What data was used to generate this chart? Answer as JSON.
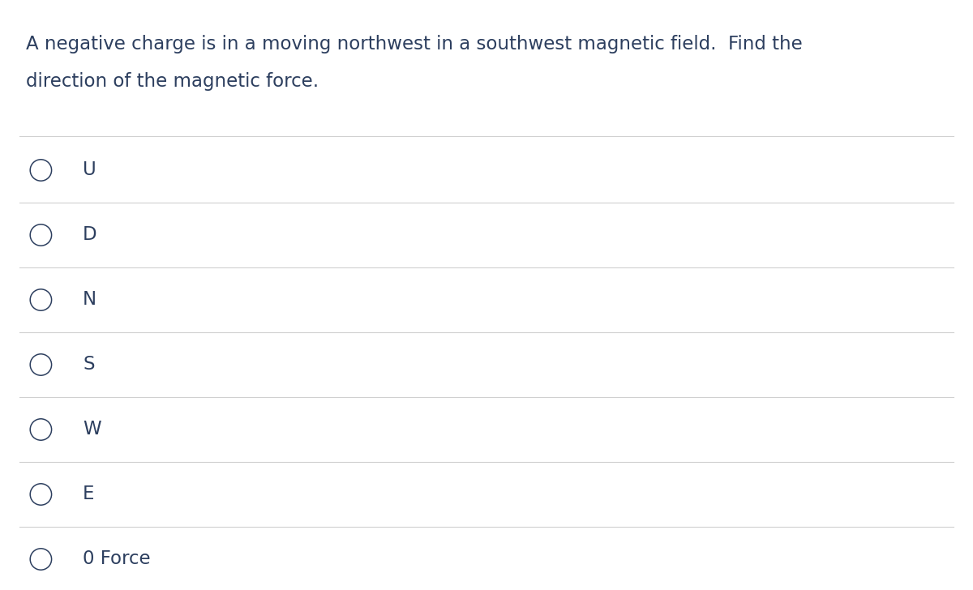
{
  "question_line1": "A negative charge is in a moving northwest in a southwest magnetic field.  Find the",
  "question_line2": "direction of the magnetic force.",
  "options": [
    "U",
    "D",
    "N",
    "S",
    "W",
    "E",
    "0 Force"
  ],
  "background_color": "#ffffff",
  "text_color": "#2d3f5f",
  "line_color": "#d0d0d0",
  "question_fontsize": 16.5,
  "option_fontsize": 16.5,
  "fig_width": 12.0,
  "fig_height": 7.28
}
